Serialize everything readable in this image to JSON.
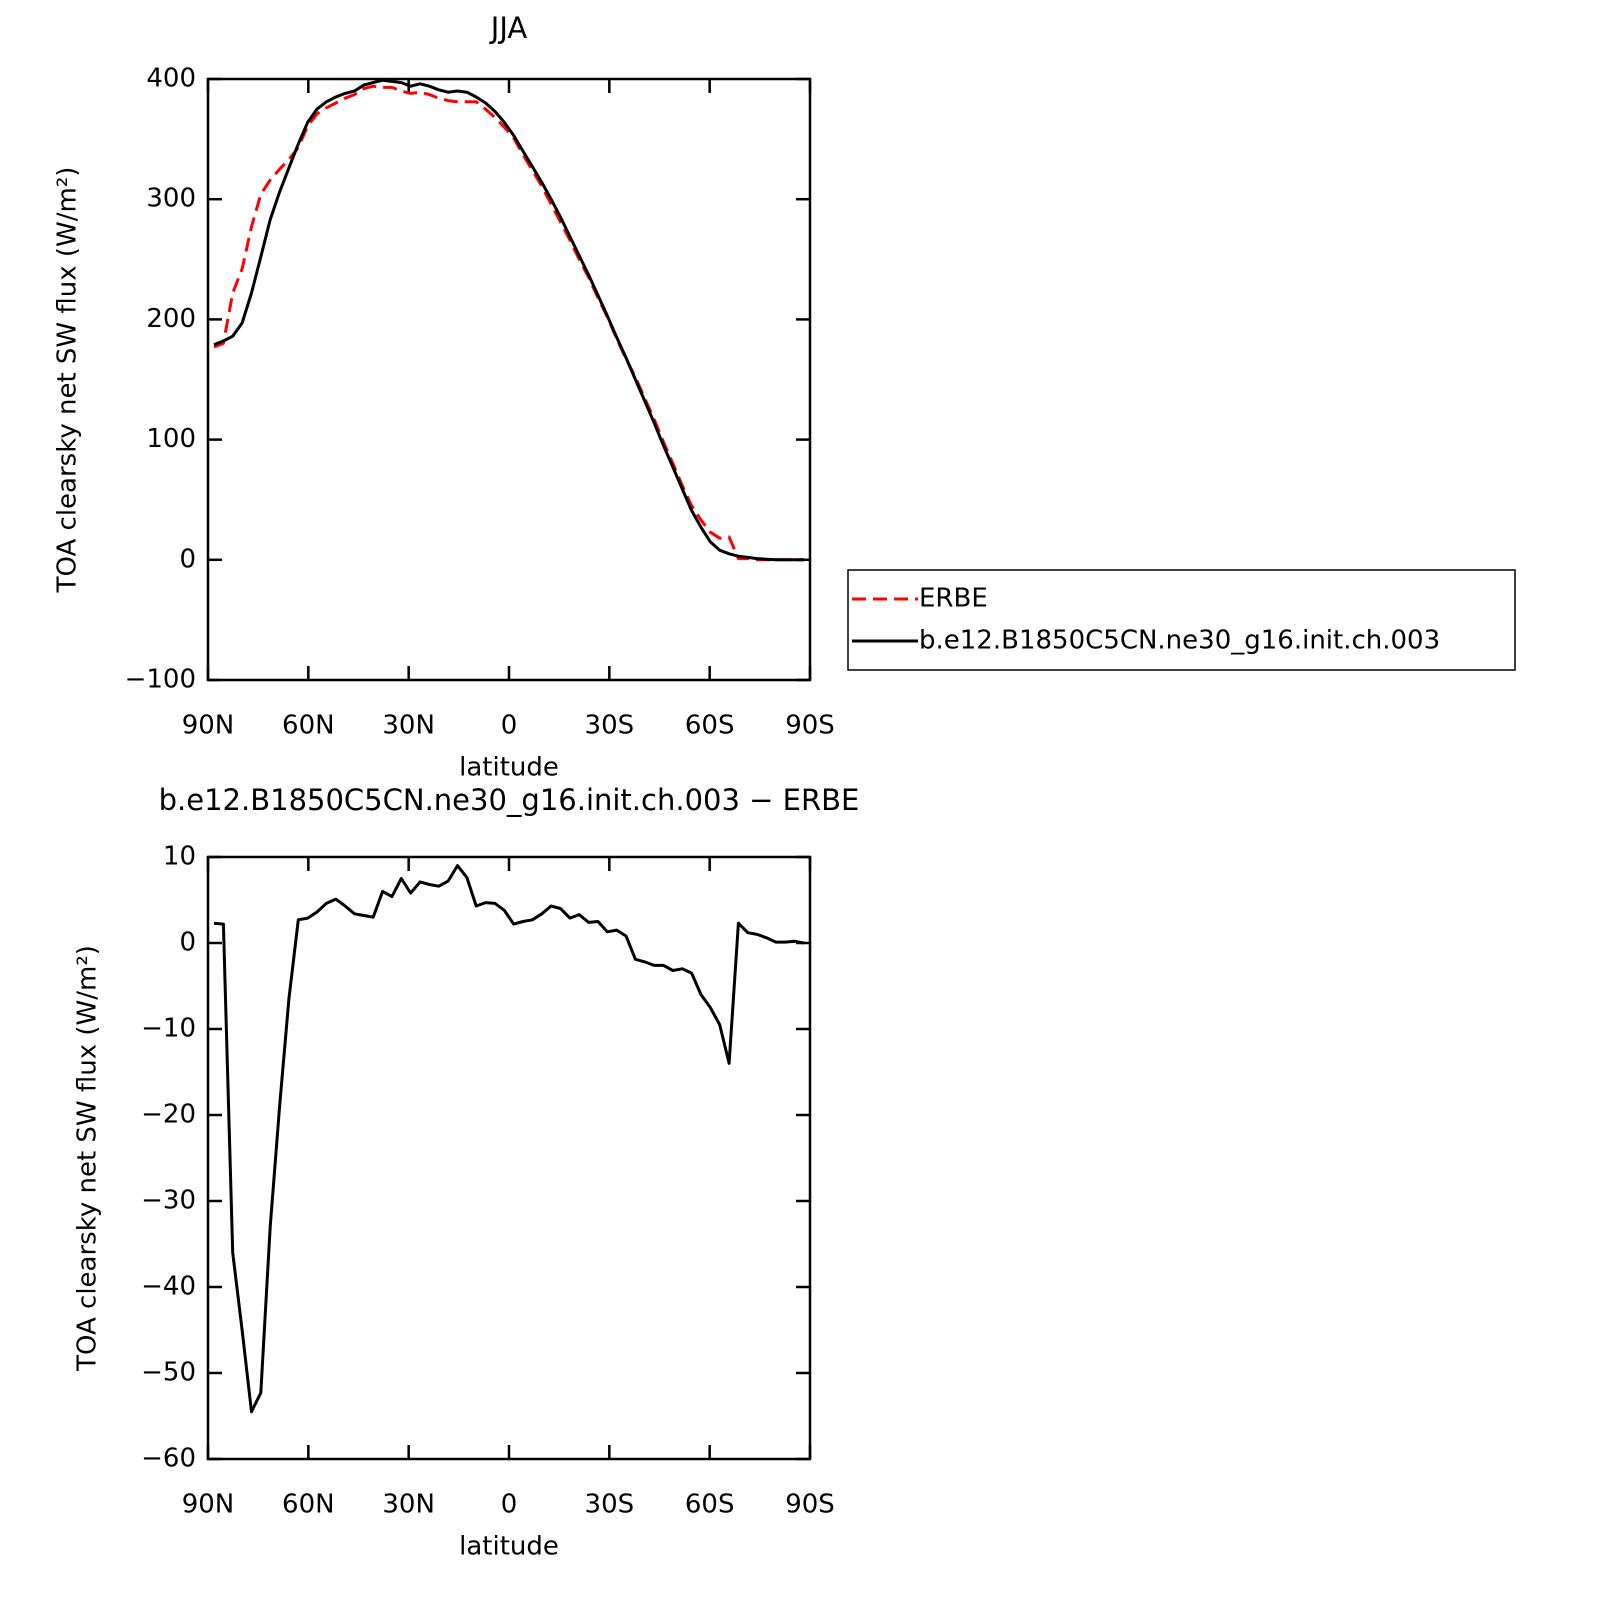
{
  "chart_data": [
    {
      "type": "line",
      "title": "JJA",
      "xlabel": "latitude",
      "ylabel": "TOA clearsky net SW flux (W/m²)",
      "x": [
        88.2,
        85.4,
        82.6,
        79.8,
        77.0,
        74.2,
        71.4,
        68.6,
        65.8,
        63.0,
        60.2,
        57.4,
        54.6,
        51.8,
        49.0,
        46.2,
        43.4,
        40.6,
        37.8,
        35.0,
        32.2,
        29.4,
        26.6,
        23.8,
        21.0,
        18.2,
        15.4,
        12.6,
        9.8,
        7.0,
        4.2,
        1.4,
        -1.4,
        -4.2,
        -7.0,
        -9.8,
        -12.6,
        -15.4,
        -18.2,
        -21.0,
        -23.8,
        -26.6,
        -29.4,
        -32.2,
        -35.0,
        -37.8,
        -40.6,
        -43.4,
        -46.2,
        -49.0,
        -51.8,
        -54.6,
        -57.4,
        -60.2,
        -63.0,
        -65.8,
        -68.6,
        -71.4,
        -74.2,
        -77.0,
        -79.8,
        -82.6,
        -85.4,
        -88.2
      ],
      "xlim": [
        90,
        -90
      ],
      "xticks": [
        {
          "value": 90,
          "label": "90N"
        },
        {
          "value": 60,
          "label": "60N"
        },
        {
          "value": 30,
          "label": "30N"
        },
        0,
        {
          "value": -30,
          "label": "30S"
        },
        {
          "value": -60,
          "label": "60S"
        },
        {
          "value": -90,
          "label": "90S"
        }
      ],
      "ylim": [
        -100,
        400
      ],
      "yticks": [
        {
          "value": -100,
          "label": "−100"
        },
        0,
        100,
        200,
        300,
        400
      ],
      "legend": "right",
      "series": [
        {
          "name": "ERBE",
          "color": "#ff0000",
          "dashed": true,
          "values": [
            177,
            180,
            222,
            242,
            277,
            304,
            316,
            325,
            333,
            343,
            361,
            371,
            376,
            380,
            384,
            387,
            392,
            394,
            393,
            393,
            390,
            388,
            389,
            387,
            384,
            382,
            381,
            381,
            381,
            375,
            368,
            360,
            351,
            337,
            324,
            311,
            296,
            281,
            266,
            250,
            235,
            218,
            202,
            184,
            167,
            152,
            134,
            117,
            98,
            80,
            62,
            45,
            33,
            23,
            18,
            19,
            1,
            1,
            0,
            0,
            0,
            0,
            0,
            0
          ]
        },
        {
          "name": "b.e12.B1850C5CN.ne30_g16.init.ch.003",
          "color": "#000000",
          "dashed": false,
          "values": [
            179,
            182,
            186,
            197,
            222,
            252,
            283,
            306,
            326,
            346,
            364,
            375,
            381,
            385,
            388,
            390,
            395,
            397,
            399,
            398,
            397,
            394,
            396,
            394,
            391,
            389,
            390,
            389,
            385,
            380,
            373,
            364,
            353,
            340,
            327,
            314,
            300,
            285,
            269,
            253,
            237,
            220,
            203,
            185,
            168,
            150,
            132,
            114,
            95,
            77,
            59,
            41,
            27,
            15,
            8,
            5,
            3,
            2,
            1,
            0.5,
            0,
            0,
            0,
            0
          ]
        }
      ]
    },
    {
      "type": "line",
      "title": "b.e12.B1850C5CN.ne30_g16.init.ch.003 − ERBE",
      "xlabel": "latitude",
      "ylabel": "TOA clearsky net SW flux (W/m²)",
      "x": [
        88.2,
        85.4,
        82.6,
        79.8,
        77.0,
        74.2,
        71.4,
        68.6,
        65.8,
        63.0,
        60.2,
        57.4,
        54.6,
        51.8,
        49.0,
        46.2,
        43.4,
        40.6,
        37.8,
        35.0,
        32.2,
        29.4,
        26.6,
        23.8,
        21.0,
        18.2,
        15.4,
        12.6,
        9.8,
        7.0,
        4.2,
        1.4,
        -1.4,
        -4.2,
        -7.0,
        -9.8,
        -12.6,
        -15.4,
        -18.2,
        -21.0,
        -23.8,
        -26.6,
        -29.4,
        -32.2,
        -35.0,
        -37.8,
        -40.6,
        -43.4,
        -46.2,
        -49.0,
        -51.8,
        -54.6,
        -57.4,
        -60.2,
        -63.0,
        -65.8,
        -68.6,
        -71.4,
        -74.2,
        -77.0,
        -79.8,
        -82.6,
        -85.4,
        -88.2
      ],
      "xlim": [
        90,
        -90
      ],
      "xticks": [
        {
          "value": 90,
          "label": "90N"
        },
        {
          "value": 60,
          "label": "60N"
        },
        {
          "value": 30,
          "label": "30N"
        },
        0,
        {
          "value": -30,
          "label": "30S"
        },
        {
          "value": -60,
          "label": "60S"
        },
        {
          "value": -90,
          "label": "90S"
        }
      ],
      "ylim": [
        -60,
        10
      ],
      "yticks": [
        {
          "value": -60,
          "label": "−60"
        },
        {
          "value": -50,
          "label": "−50"
        },
        {
          "value": -40,
          "label": "−40"
        },
        {
          "value": -30,
          "label": "−30"
        },
        {
          "value": -20,
          "label": "−20"
        },
        {
          "value": -10,
          "label": "−10"
        },
        0,
        10
      ],
      "series": [
        {
          "color": "#000000",
          "dashed": false,
          "values": [
            2.3,
            2.2,
            -36,
            -45,
            -54.5,
            -52.3,
            -33,
            -19,
            -6.5,
            2.7,
            2.9,
            3.6,
            4.6,
            5.1,
            4.3,
            3.4,
            3.2,
            3.0,
            6.0,
            5.4,
            7.5,
            5.8,
            7.1,
            6.8,
            6.6,
            7.2,
            9.0,
            7.6,
            4.3,
            4.7,
            4.6,
            3.8,
            2.2,
            2.5,
            2.7,
            3.4,
            4.3,
            4.0,
            2.9,
            3.3,
            2.4,
            2.5,
            1.3,
            1.5,
            0.8,
            -1.9,
            -2.2,
            -2.6,
            -2.6,
            -3.2,
            -3.0,
            -3.5,
            -6.0,
            -7.5,
            -9.5,
            -14.0,
            2.3,
            1.2,
            1.0,
            0.6,
            0.1,
            0.1,
            0.2,
            0.0
          ]
        }
      ]
    }
  ]
}
